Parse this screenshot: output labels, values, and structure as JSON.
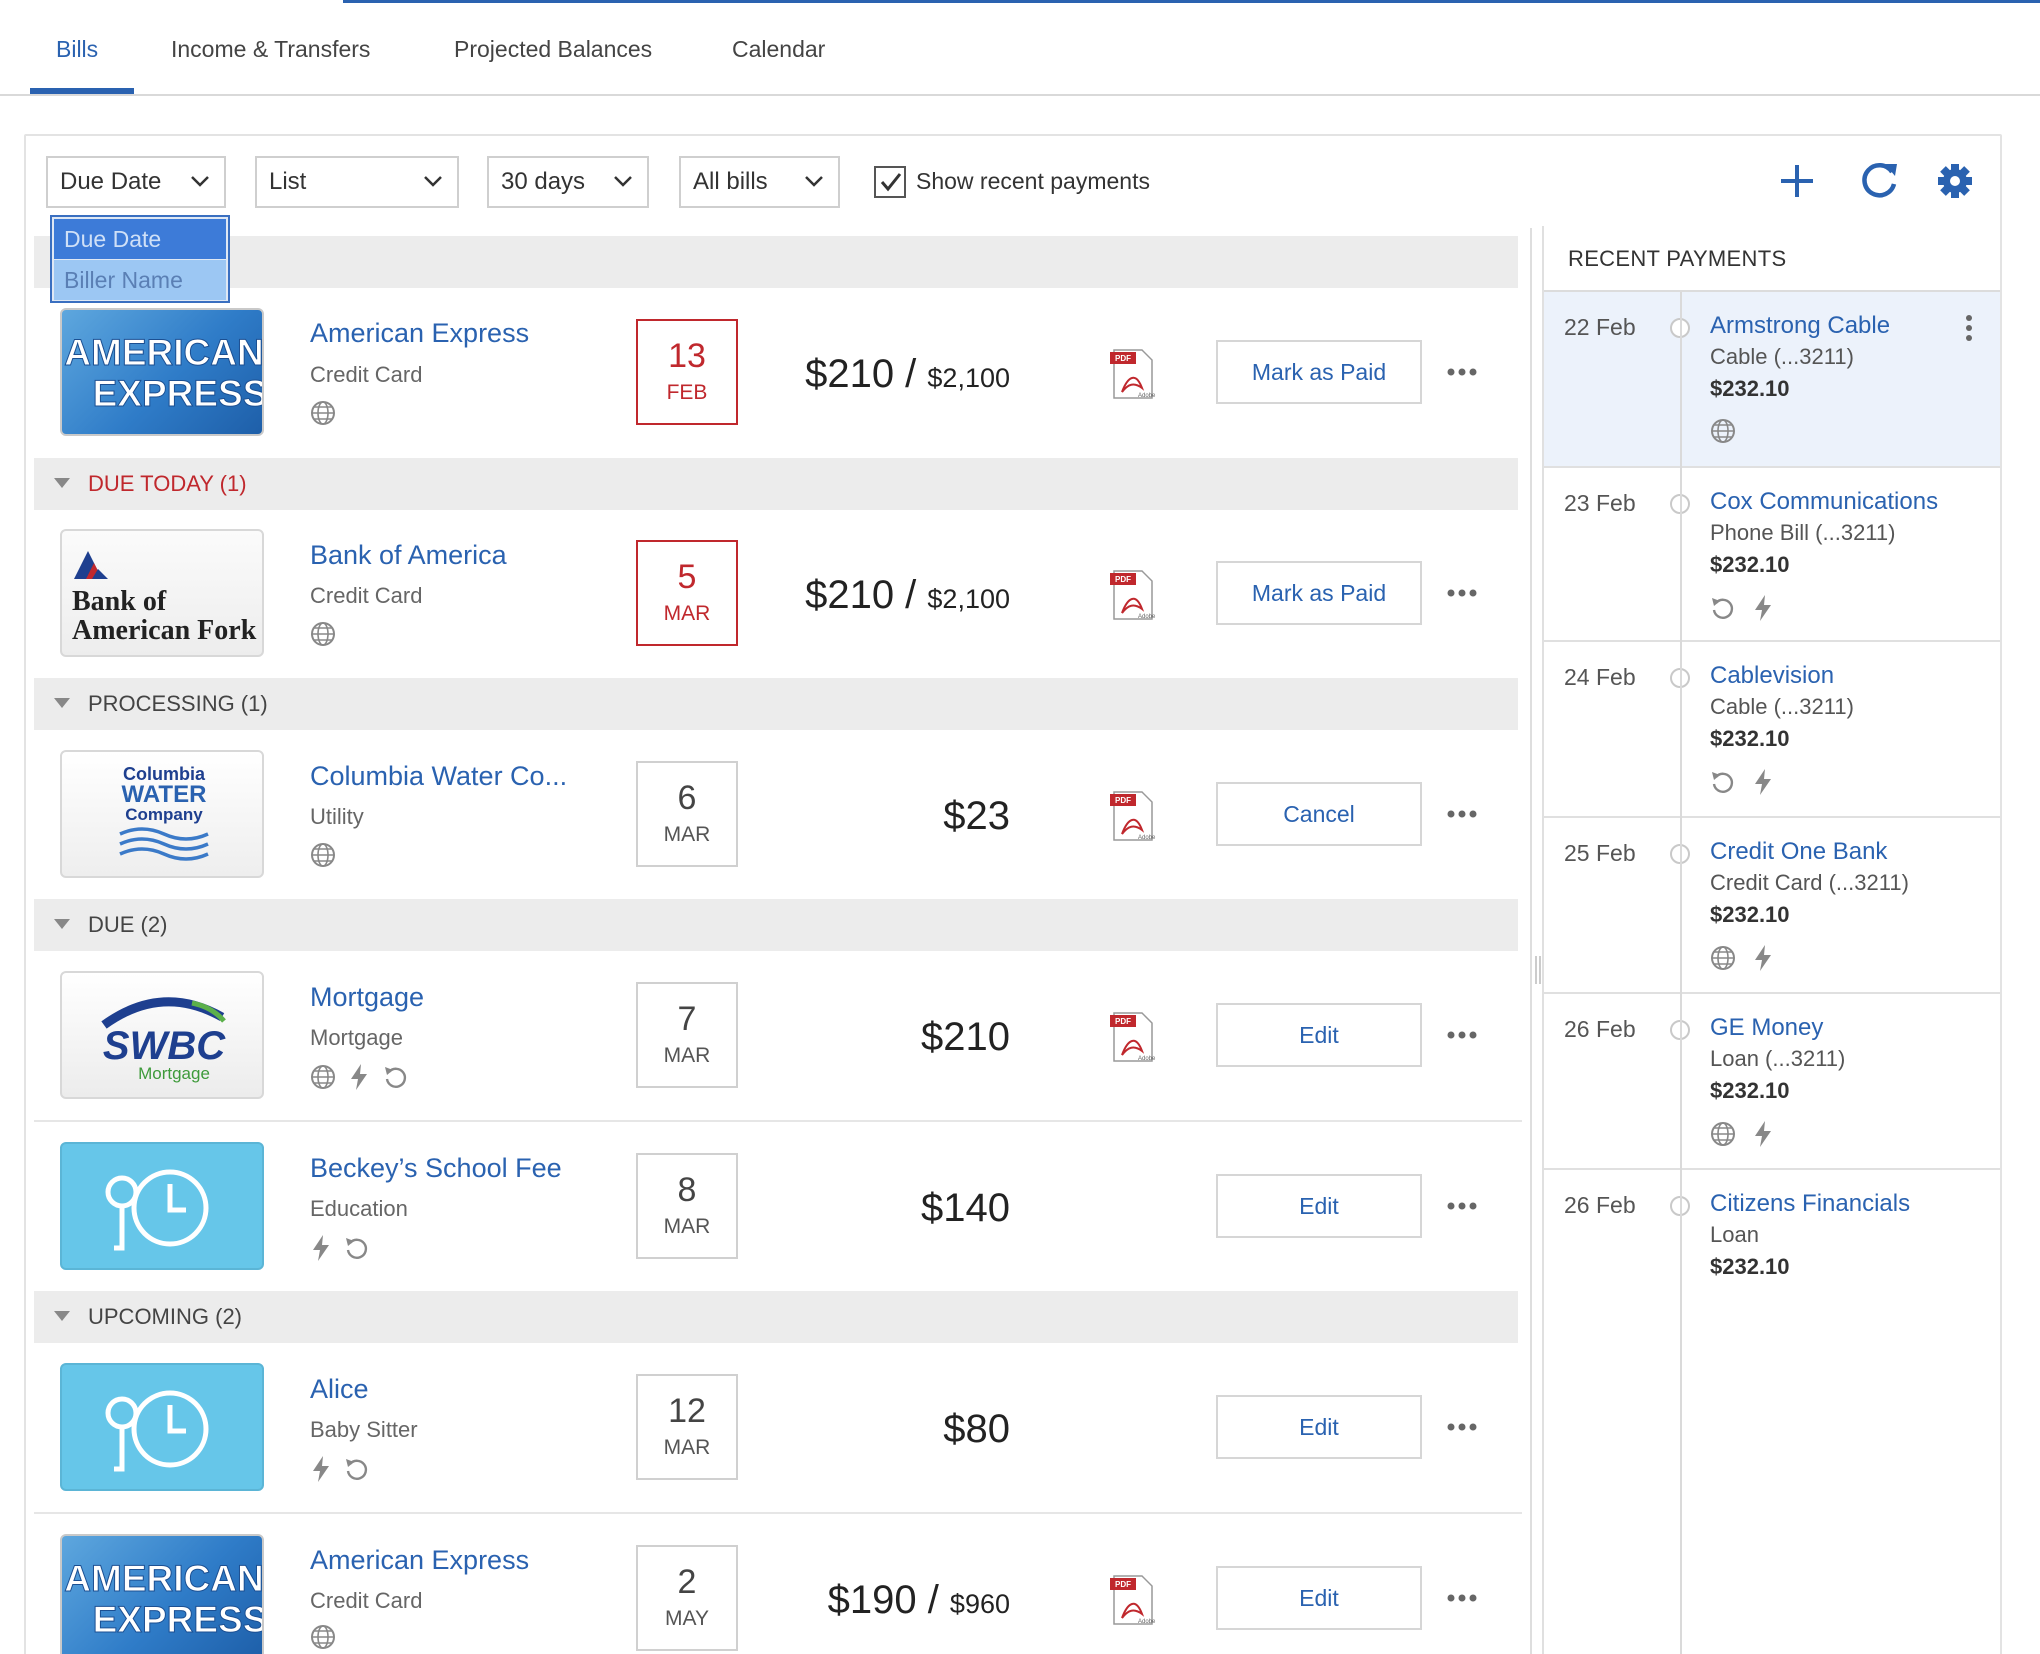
{
  "tabs": [
    {
      "label": "Bills"
    },
    {
      "label": "Income & Transfers"
    },
    {
      "label": "Projected Balances"
    },
    {
      "label": "Calendar"
    }
  ],
  "toolbar": {
    "sort": "Due Date",
    "view": "List",
    "range": "30 days",
    "filter": "All bills",
    "show_recent_label": "Show recent payments",
    "show_recent_checked": true,
    "sort_options": [
      "Due Date",
      "Biller Name"
    ]
  },
  "groups": {
    "due_today": "DUE TODAY (1)",
    "processing": "PROCESSING (1)",
    "due": "DUE (2)",
    "upcoming": "UPCOMING (2)"
  },
  "bills": [
    {
      "logo": "amex-logo",
      "logo_text_1": "AMERICAN",
      "logo_text_2": "EXPRESS",
      "name": "American Express",
      "category": "Credit Card",
      "day": "13",
      "month": "FEB",
      "amount": "$210",
      "total": "$2,100",
      "action": "Mark as Paid",
      "overdue": true
    },
    {
      "logo": "boa-logo",
      "logo_text_1": "Bank of",
      "logo_text_2": "American Fork",
      "name": "Bank of America",
      "category": "Credit Card",
      "day": "5",
      "month": "MAR",
      "amount": "$210",
      "total": "$2,100",
      "action": "Mark as Paid",
      "overdue": true
    },
    {
      "logo": "water-logo",
      "logo_text_1": "Columbia",
      "logo_text_2": "WATER",
      "logo_text_3": "Company",
      "name": "Columbia Water Co...",
      "category": "Utility",
      "day": "6",
      "month": "MAR",
      "amount": "$23",
      "total": "",
      "action": "Cancel"
    },
    {
      "logo": "swbc-logo",
      "logo_text_1": "SWBC",
      "logo_text_2": "Mortgage",
      "name": "Mortgage",
      "category": "Mortgage",
      "day": "7",
      "month": "MAR",
      "amount": "$210",
      "total": "",
      "action": "Edit"
    },
    {
      "logo": "generic-bill-icon",
      "name": "Beckey’s School Fee",
      "category": "Education",
      "day": "8",
      "month": "MAR",
      "amount": "$140",
      "total": "",
      "action": "Edit"
    },
    {
      "logo": "generic-bill-icon",
      "name": "Alice",
      "category": "Baby Sitter",
      "day": "12",
      "month": "MAR",
      "amount": "$80",
      "total": "",
      "action": "Edit"
    },
    {
      "logo": "amex-logo",
      "logo_text_1": "AMERICAN",
      "logo_text_2": "EXPRESS",
      "name": "American Express",
      "category": "Credit Card",
      "day": "2",
      "month": "MAY",
      "amount": "$190",
      "total": "$960",
      "action": "Edit"
    }
  ],
  "recent_payments": {
    "title": "RECENT PAYMENTS",
    "items": [
      {
        "date": "22 Feb",
        "name": "Armstrong Cable",
        "desc": "Cable (...3211)",
        "amount": "$232.10"
      },
      {
        "date": "23 Feb",
        "name": "Cox Communications",
        "desc": "Phone Bill (...3211)",
        "amount": "$232.10"
      },
      {
        "date": "24 Feb",
        "name": "Cablevision",
        "desc": "Cable (...3211)",
        "amount": "$232.10"
      },
      {
        "date": "25 Feb",
        "name": "Credit One Bank",
        "desc": "Credit Card (...3211)",
        "amount": "$232.10"
      },
      {
        "date": "26 Feb",
        "name": "GE Money",
        "desc": "Loan (...3211)",
        "amount": "$232.10"
      },
      {
        "date": "26 Feb",
        "name": "Citizens Financials",
        "desc": "Loan",
        "amount": "$232.10"
      }
    ]
  },
  "colors": {
    "accent": "#2a62b0",
    "overdue": "#c0282d",
    "group_bg": "#ececec",
    "highlight": "#ecf2fb"
  }
}
